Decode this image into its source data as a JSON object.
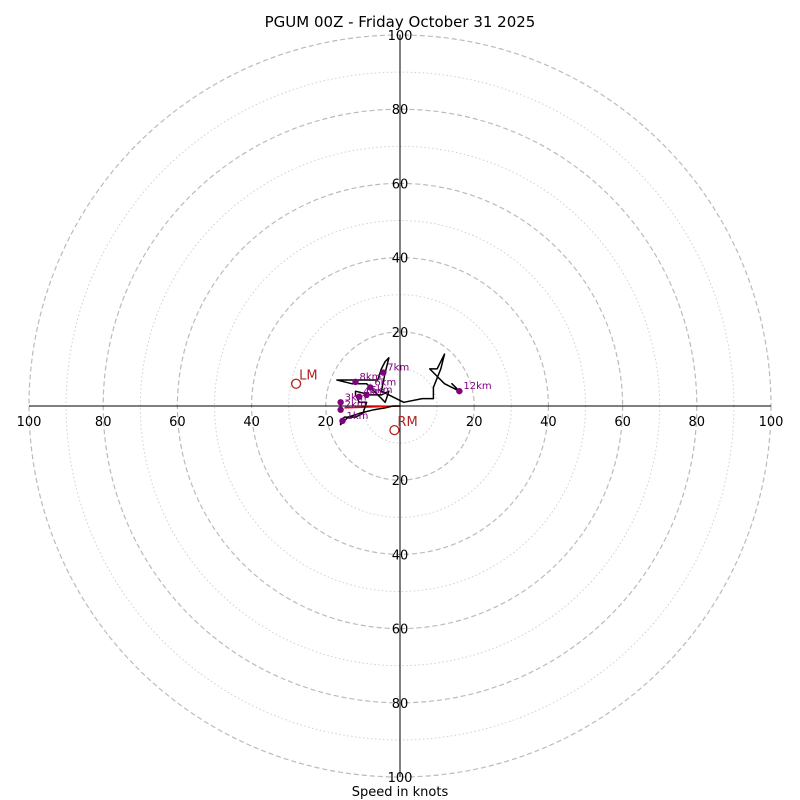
{
  "chart_data": {
    "type": "hodograph",
    "title": "PGUM 00Z - Friday October 31 2025",
    "xlabel": "Speed in knots",
    "max_speed": 100,
    "rings_major": [
      20,
      40,
      60,
      80,
      100
    ],
    "rings_minor": [
      10,
      30,
      50,
      70,
      90
    ],
    "tick_labels": [
      20,
      40,
      60,
      80,
      100
    ],
    "colors": {
      "hodograph": "#000000",
      "height_markers": "#800080",
      "mean_wind": "#ff0000",
      "storm_motion": "#b22222",
      "grid": "#bbbbbb"
    },
    "hodograph": {
      "u": [
        0,
        -2,
        -4,
        -7,
        -11,
        -14,
        -15,
        -16,
        -16,
        -15,
        -12,
        -10,
        -9,
        -11,
        -12,
        -12,
        -8,
        -5,
        -3,
        -4,
        -9,
        -13,
        -17,
        -6,
        -5,
        -4,
        -3,
        -4,
        -5,
        1,
        6,
        8,
        9,
        9,
        11,
        12,
        10,
        8,
        12,
        16,
        14,
        16
      ],
      "v": [
        0,
        0,
        -0.5,
        -1,
        -2,
        -3,
        -4,
        -5,
        -4,
        -3,
        -3,
        -2,
        1,
        1,
        3,
        4,
        3,
        3,
        4,
        1,
        6,
        6,
        7,
        7,
        10,
        12,
        13,
        9,
        4,
        1,
        2,
        2,
        2,
        5,
        10,
        14,
        10,
        10,
        6,
        4,
        6,
        4
      ]
    },
    "height_markers": [
      {
        "label": "1km",
        "u": -15.5,
        "v": -4
      },
      {
        "label": "2km",
        "u": -16,
        "v": -1
      },
      {
        "label": "3km",
        "u": -16,
        "v": 1
      },
      {
        "label": "4km",
        "u": -11,
        "v": 2.5
      },
      {
        "label": "5km",
        "u": -9,
        "v": 3
      },
      {
        "label": "6km",
        "u": -8,
        "v": 5
      },
      {
        "label": "7km",
        "u": -4.5,
        "v": 9
      },
      {
        "label": "8km",
        "u": -12,
        "v": 6.5
      },
      {
        "label": "12km",
        "u": 16,
        "v": 4
      }
    ],
    "mean_wind": {
      "u": -15,
      "v": -0.5
    },
    "storm_motion": [
      {
        "label": "LM",
        "u": -28,
        "v": 6
      },
      {
        "label": "RM",
        "u": -1.5,
        "v": -6.5
      }
    ]
  }
}
